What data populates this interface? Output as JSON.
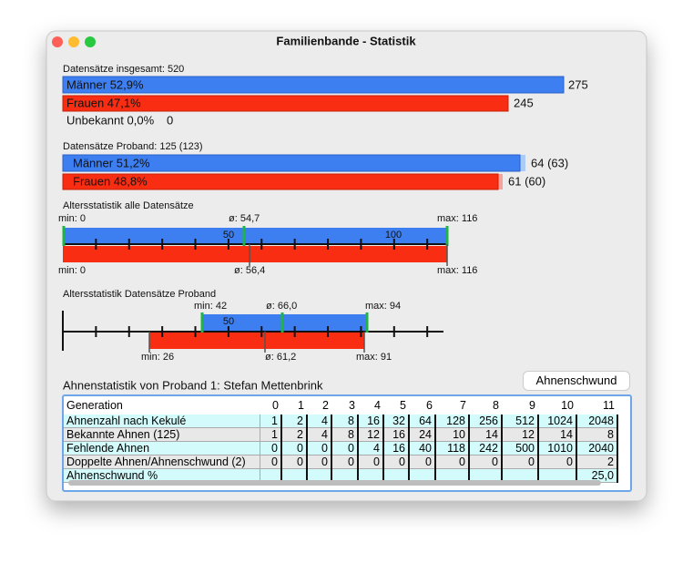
{
  "window": {
    "title": "Familienbande - Statistik"
  },
  "total": {
    "heading": "Datensätze insgesamt: 520",
    "male": {
      "label": "Männer 52,9%",
      "count": "275"
    },
    "female": {
      "label": "Frauen 47,1%",
      "count": "245"
    },
    "unknown": {
      "label": "Unbekannt 0,0%",
      "count": "0"
    }
  },
  "proband": {
    "heading": "Datensätze Proband: 125 (123)",
    "male": {
      "label": "Männer 51,2%",
      "count": "64 (63)"
    },
    "female": {
      "label": "Frauen 48,8%",
      "count": "61 (60)"
    }
  },
  "age_all": {
    "heading": "Altersstatistik alle Datensätze",
    "male": {
      "min": "min: 0",
      "mean": "ø: 54,7",
      "max": "max: 116"
    },
    "female": {
      "min": "min: 0",
      "mean": "ø: 56,4",
      "max": "max: 116"
    },
    "scale_labels": [
      "50",
      "100"
    ]
  },
  "age_proband": {
    "heading": "Altersstatistik Datensätze Proband",
    "male": {
      "min": "min: 42",
      "mean": "ø: 66,0",
      "max": "max: 94"
    },
    "female": {
      "min": "min: 26",
      "mean": "ø: 61,2",
      "max": "max: 91"
    },
    "scale_labels": [
      "50"
    ]
  },
  "ancestors": {
    "heading": "Ahnenstatistik von Proband 1: Stefan Mettenbrink",
    "button": "Ahnenschwund",
    "table": {
      "header": [
        "Generation",
        "0",
        "1",
        "2",
        "3",
        "4",
        "5",
        "6",
        "7",
        "8",
        "9",
        "10",
        "11"
      ],
      "rows": [
        [
          "Ahnenzahl nach Kekulé",
          "1",
          "2",
          "4",
          "8",
          "16",
          "32",
          "64",
          "128",
          "256",
          "512",
          "1024",
          "2048"
        ],
        [
          "Bekannte Ahnen (125)",
          "1",
          "2",
          "4",
          "8",
          "12",
          "16",
          "24",
          "10",
          "14",
          "12",
          "14",
          "8"
        ],
        [
          "Fehlende Ahnen",
          "0",
          "0",
          "0",
          "0",
          "4",
          "16",
          "40",
          "118",
          "242",
          "500",
          "1010",
          "2040"
        ],
        [
          "Doppelte Ahnen/Ahnenschwund (2)",
          "0",
          "0",
          "0",
          "0",
          "0",
          "0",
          "0",
          "0",
          "0",
          "0",
          "0",
          "2"
        ]
      ],
      "partial_row": {
        "label": "Ahnenschwund %",
        "11": "25,0"
      }
    }
  }
}
